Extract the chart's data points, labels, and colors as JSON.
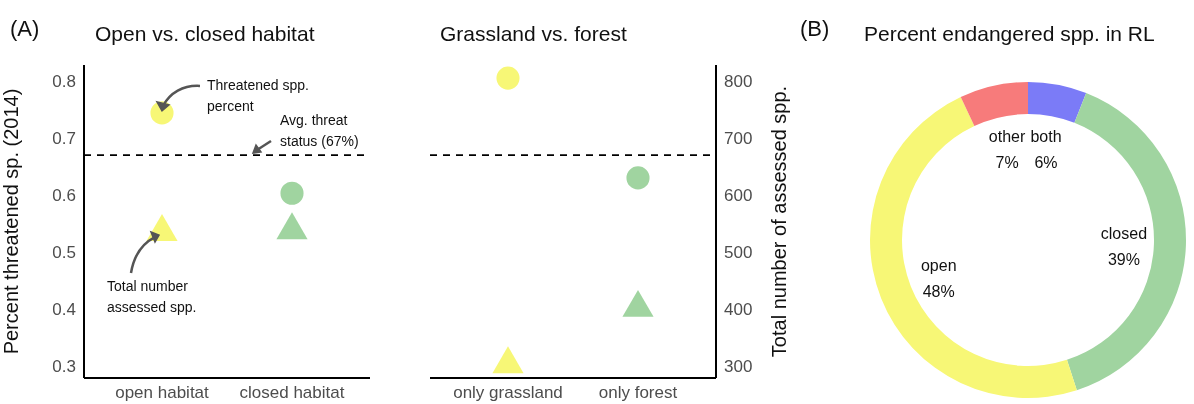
{
  "chart_data": [
    {
      "type": "scatter",
      "title": "Open vs. closed habitat",
      "ylabel": "Percent threatened sp. (2014)",
      "categories": [
        "open habitat",
        "closed habitat"
      ],
      "ylim": [
        0.279,
        0.828
      ],
      "yticks": [
        0.3,
        0.4,
        0.5,
        0.6,
        0.7,
        0.8
      ],
      "y2lim": [
        279,
        828
      ],
      "series": [
        {
          "values": [
            0.744,
            0.603
          ],
          "colors": [
            "#f7f776",
            "#a0d4a0"
          ],
          "marker": "circle"
        },
        {
          "values": [
            535,
            538
          ],
          "colors": [
            "#f7f776",
            "#a0d4a0"
          ],
          "marker": "triangle",
          "axis": "y2"
        }
      ],
      "ref_lines": [
        {
          "axis": "y",
          "value": 0.67,
          "label": "Avg. threat status (67%)",
          "line_style": "dashed",
          "color": "#000000"
        }
      ],
      "annotations": [
        "(A)",
        {
          "text": "Threatened spp. percent",
          "x": "open habitat",
          "y": 0.744
        },
        {
          "text": "Total number assessed spp.",
          "x": "open habitat",
          "y": 0.535
        }
      ]
    },
    {
      "type": "scatter",
      "title": "Grassland vs. forest",
      "y2label": "Total number of assessed spp.",
      "categories": [
        "only grassland",
        "only forest"
      ],
      "ylim": [
        0.279,
        0.828
      ],
      "y2lim": [
        279,
        828
      ],
      "y2ticks": [
        300,
        400,
        500,
        600,
        700,
        800
      ],
      "series": [
        {
          "values": [
            0.805,
            0.63
          ],
          "colors": [
            "#f7f776",
            "#a0d4a0"
          ],
          "marker": "circle"
        },
        {
          "values": [
            303,
            402
          ],
          "colors": [
            "#f7f776",
            "#a0d4a0"
          ],
          "marker": "triangle",
          "axis": "y2"
        }
      ],
      "ref_lines": [
        {
          "axis": "y",
          "value": 0.67,
          "line_style": "dashed",
          "color": "#000000"
        }
      ]
    },
    {
      "type": "donut",
      "title": "Percent endangered spp. in RL",
      "categories": [
        "both",
        "closed",
        "open",
        "other"
      ],
      "values": [
        6,
        39,
        48,
        7
      ],
      "colors": [
        "#7b7bf7",
        "#a0d4a0",
        "#f7f776",
        "#f77b7b"
      ],
      "value_labels": [
        "6%",
        "39%",
        "48%",
        "7%"
      ],
      "annotations": [
        "(B)"
      ]
    }
  ]
}
